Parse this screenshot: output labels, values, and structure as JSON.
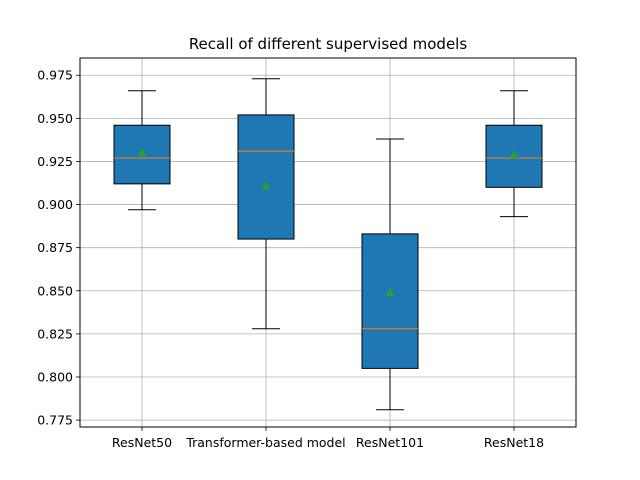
{
  "chart_data": {
    "type": "box",
    "title": "Recall of different supervised models",
    "xlabel": "",
    "ylabel": "",
    "categories": [
      "ResNet50",
      "Transformer-based model",
      "ResNet101",
      "ResNet18"
    ],
    "boxes": [
      {
        "whisker_low": 0.897,
        "q1": 0.912,
        "median": 0.927,
        "q3": 0.946,
        "whisker_high": 0.966,
        "mean": 0.93
      },
      {
        "whisker_low": 0.828,
        "q1": 0.88,
        "median": 0.931,
        "q3": 0.952,
        "whisker_high": 0.973,
        "mean": 0.911
      },
      {
        "whisker_low": 0.781,
        "q1": 0.805,
        "median": 0.828,
        "q3": 0.883,
        "whisker_high": 0.938,
        "mean": 0.849
      },
      {
        "whisker_low": 0.893,
        "q1": 0.91,
        "median": 0.927,
        "q3": 0.946,
        "whisker_high": 0.966,
        "mean": 0.929
      }
    ],
    "ylim": [
      0.771,
      0.985
    ],
    "yticks": [
      0.775,
      0.8,
      0.825,
      0.85,
      0.875,
      0.9,
      0.925,
      0.95,
      0.975
    ],
    "ytick_labels": [
      "0.775",
      "0.800",
      "0.825",
      "0.850",
      "0.875",
      "0.900",
      "0.925",
      "0.950",
      "0.975"
    ],
    "grid": true,
    "show_means": true,
    "colors": {
      "box_fill": "#1f77b4",
      "median_line": "#ff7f0e",
      "mean_marker": "#2ca02c",
      "grid": "#b0b0b0",
      "axis": "#000000"
    }
  }
}
